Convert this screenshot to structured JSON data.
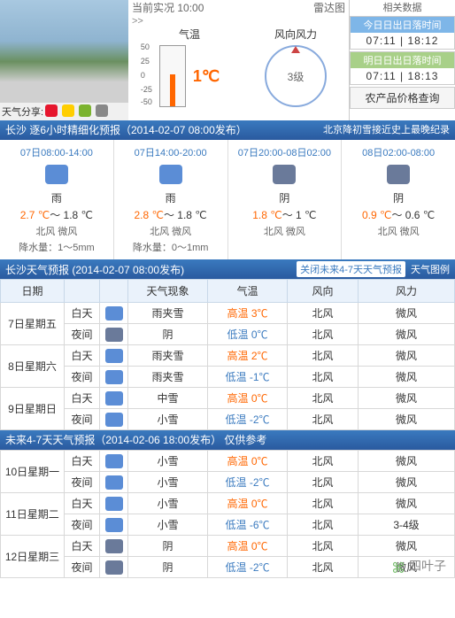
{
  "top": {
    "share_label": "天气分享:",
    "now_label": "当前实况",
    "now_time": "10:00",
    "radar": "雷达图",
    "arrows": ">>",
    "temp_label": "气温",
    "temp_value": "1℃",
    "gauge_ticks": [
      "50",
      "25",
      "0",
      "-25",
      "-50"
    ],
    "wind_label": "风向风力",
    "wind_level": "3级",
    "related": "相关数据",
    "sun_today_title": "今日日出日落时间",
    "sun_today_time": "07:11 | 18:12",
    "sun_tomorrow_title": "明日日出日落时间",
    "sun_tomorrow_time": "07:11 | 18:13",
    "agri_btn": "农产品价格查询"
  },
  "hour6_bar": {
    "left": "长沙 逐6小时精细化预报（2014-02-07  08:00发布）",
    "right": "北京降初雪接近史上最晚纪录"
  },
  "hour6": [
    {
      "time": "07日08:00-14:00",
      "icon": "w-rain",
      "cond": "雨",
      "temps_html": "<span class='t-high'>2.7 ℃</span>～ 1.8 ℃",
      "wind": "北风 微风",
      "precip": "降水量：1～5mm"
    },
    {
      "time": "07日14:00-20:00",
      "icon": "w-rain",
      "cond": "雨",
      "temps_html": "<span class='t-high'>2.8 ℃</span>～ 1.8 ℃",
      "wind": "北风 微风",
      "precip": "降水量：0～1mm"
    },
    {
      "time": "07日20:00-08日02:00",
      "icon": "w-cloudy",
      "cond": "阴",
      "temps_html": "<span class='t-high'>1.8 ℃</span>～ 1 ℃",
      "wind": "北风 微风",
      "precip": ""
    },
    {
      "time": "08日02:00-08:00",
      "icon": "w-cloudy",
      "cond": "阴",
      "temps_html": "<span class='t-high'>0.9 ℃</span>～ 0.6 ℃",
      "wind": "北风 微风",
      "precip": ""
    }
  ],
  "fc_bar": {
    "left": "长沙天气预报 (2014-02-07  08:00发布)",
    "close": "关闭未来4-7天天气预报",
    "legend": "天气图例"
  },
  "fc_headers": [
    "日期",
    "",
    "",
    "天气现象",
    "气温",
    "风向",
    "风力"
  ],
  "fc_days": [
    {
      "date": "7日星期五",
      "rows": [
        {
          "dn": "白天",
          "icon": "w-sleet",
          "ic_color": "#5b8dd6",
          "phen": "雨夹雪",
          "temp_label": "高温",
          "temp": "3℃",
          "temp_color": "#ff6600",
          "dir": "北风",
          "force": "微风"
        },
        {
          "dn": "夜间",
          "icon": "w-cloudy",
          "ic_color": "#6a7a9a",
          "phen": "阴",
          "temp_label": "低温",
          "temp": "0℃",
          "temp_color": "#3a7abf",
          "dir": "北风",
          "force": "微风"
        }
      ]
    },
    {
      "date": "8日星期六",
      "rows": [
        {
          "dn": "白天",
          "icon": "w-sleet",
          "ic_color": "#5b8dd6",
          "phen": "雨夹雪",
          "temp_label": "高温",
          "temp": "2℃",
          "temp_color": "#ff6600",
          "dir": "北风",
          "force": "微风"
        },
        {
          "dn": "夜间",
          "icon": "w-sleet",
          "ic_color": "#5b8dd6",
          "phen": "雨夹雪",
          "temp_label": "低温",
          "temp": "-1℃",
          "temp_color": "#3a7abf",
          "dir": "北风",
          "force": "微风"
        }
      ]
    },
    {
      "date": "9日星期日",
      "rows": [
        {
          "dn": "白天",
          "icon": "w-snow",
          "ic_color": "#5b8dd6",
          "phen": "中雪",
          "temp_label": "高温",
          "temp": "0℃",
          "temp_color": "#ff6600",
          "dir": "北风",
          "force": "微风"
        },
        {
          "dn": "夜间",
          "icon": "w-snow",
          "ic_color": "#5b8dd6",
          "phen": "小雪",
          "temp_label": "低温",
          "temp": "-2℃",
          "temp_color": "#3a7abf",
          "dir": "北风",
          "force": "微风"
        }
      ]
    }
  ],
  "future_bar": "未来4-7天天气预报（2014-02-06 18:00发布）   仅供参考",
  "future_days": [
    {
      "date": "10日星期一",
      "rows": [
        {
          "dn": "白天",
          "icon": "w-snow",
          "ic_color": "#5b8dd6",
          "phen": "小雪",
          "temp_label": "高温",
          "temp": "0℃",
          "temp_color": "#ff6600",
          "dir": "北风",
          "force": "微风"
        },
        {
          "dn": "夜间",
          "icon": "w-snow",
          "ic_color": "#5b8dd6",
          "phen": "小雪",
          "temp_label": "低温",
          "temp": "-2℃",
          "temp_color": "#3a7abf",
          "dir": "北风",
          "force": "微风"
        }
      ]
    },
    {
      "date": "11日星期二",
      "rows": [
        {
          "dn": "白天",
          "icon": "w-snow",
          "ic_color": "#5b8dd6",
          "phen": "小雪",
          "temp_label": "高温",
          "temp": "0℃",
          "temp_color": "#ff6600",
          "dir": "北风",
          "force": "微风"
        },
        {
          "dn": "夜间",
          "icon": "w-snow",
          "ic_color": "#5b8dd6",
          "phen": "小雪",
          "temp_label": "低温",
          "temp": "-6℃",
          "temp_color": "#3a7abf",
          "dir": "北风",
          "force": "3-4级"
        }
      ]
    },
    {
      "date": "12日星期三",
      "rows": [
        {
          "dn": "白天",
          "icon": "w-cloudy",
          "ic_color": "#6a7a9a",
          "phen": "阴",
          "temp_label": "高温",
          "temp": "0℃",
          "temp_color": "#ff6600",
          "dir": "北风",
          "force": "微风"
        },
        {
          "dn": "夜间",
          "icon": "w-cloudy",
          "ic_color": "#6a7a9a",
          "phen": "阴",
          "temp_label": "低温",
          "temp": "-2℃",
          "temp_color": "#3a7abf",
          "dir": "北风",
          "force": "微风"
        }
      ]
    }
  ],
  "watermark": "四叶子"
}
